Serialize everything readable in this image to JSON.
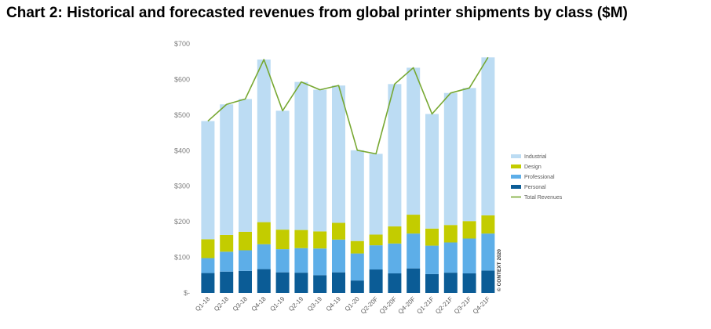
{
  "chart_data": {
    "type": "bar",
    "stacked": true,
    "title": "Chart 2: Historical and forecasted revenues from global printer shipments by class ($M)",
    "xlabel": "",
    "ylabel": "",
    "ylim": [
      0,
      700
    ],
    "y_ticks": [
      "$-",
      "$100",
      "$200",
      "$300",
      "$400",
      "$500",
      "$600",
      "$700"
    ],
    "grid": false,
    "legend_position": "right",
    "categories": [
      "Q1-18",
      "Q2-18",
      "Q3-18",
      "Q4-18",
      "Q1-19",
      "Q2-19",
      "Q3-19",
      "Q4-19",
      "Q1-20",
      "Q2-20F",
      "Q3-20F",
      "Q4-20F",
      "Q1-21F",
      "Q2-21F",
      "Q3-21F",
      "Q4-21F"
    ],
    "series": [
      {
        "name": "Personal",
        "color": "#0b5c96",
        "values": [
          56,
          60,
          62,
          67,
          58,
          57,
          50,
          58,
          35,
          66,
          55,
          69,
          53,
          57,
          55,
          63
        ]
      },
      {
        "name": "Professional",
        "color": "#5daee8",
        "values": [
          42,
          56,
          58,
          70,
          65,
          69,
          75,
          92,
          76,
          68,
          84,
          98,
          80,
          85,
          98,
          104
        ]
      },
      {
        "name": "Design",
        "color": "#c3cc00",
        "values": [
          53,
          47,
          52,
          62,
          55,
          51,
          48,
          47,
          35,
          30,
          48,
          53,
          48,
          49,
          49,
          51
        ]
      },
      {
        "name": "Industrial",
        "color": "#bcdcf3",
        "values": [
          332,
          367,
          373,
          457,
          334,
          416,
          398,
          386,
          255,
          227,
          400,
          413,
          322,
          371,
          374,
          444
        ]
      }
    ],
    "line_series": {
      "name": "Total Revenues",
      "color": "#77a832",
      "values": [
        483,
        530,
        545,
        656,
        512,
        593,
        571,
        583,
        401,
        391,
        587,
        633,
        503,
        562,
        576,
        662
      ]
    },
    "copyright": "© CONTEXT 2020"
  }
}
